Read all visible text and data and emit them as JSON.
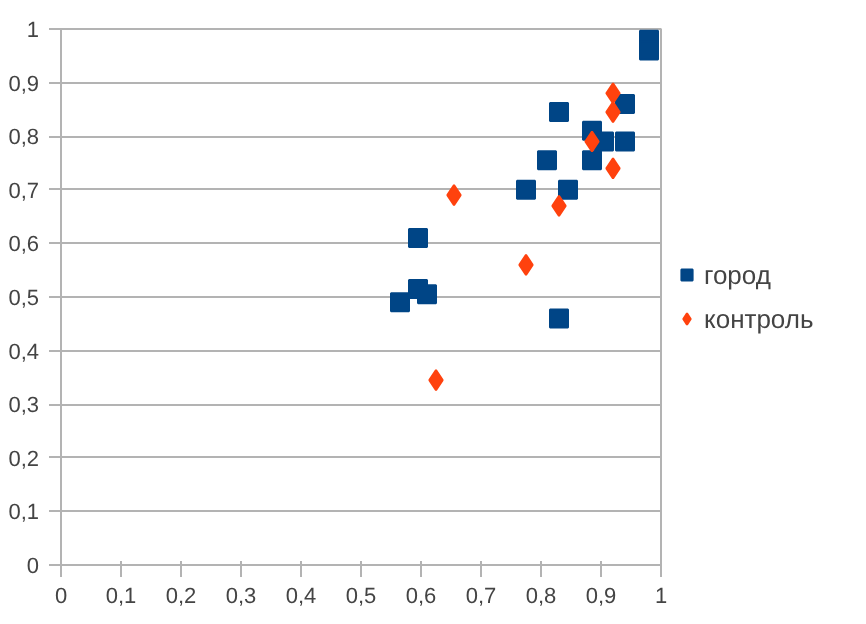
{
  "chart_data": {
    "type": "scatter",
    "xlim": [
      0,
      1
    ],
    "ylim": [
      0,
      1
    ],
    "xticks": [
      0,
      {
        "value": 0.1,
        "label": "0,1"
      },
      {
        "value": 0.2,
        "label": "0,2"
      },
      {
        "value": 0.3,
        "label": "0,3"
      },
      {
        "value": 0.4,
        "label": "0,4"
      },
      {
        "value": 0.5,
        "label": "0,5"
      },
      {
        "value": 0.6,
        "label": "0,6"
      },
      {
        "value": 0.7,
        "label": "0,7"
      },
      {
        "value": 0.8,
        "label": "0,8"
      },
      {
        "value": 0.9,
        "label": "0,9"
      },
      1
    ],
    "yticks": [
      0,
      {
        "value": 0.1,
        "label": "0,1"
      },
      {
        "value": 0.2,
        "label": "0,2"
      },
      {
        "value": 0.3,
        "label": "0,3"
      },
      {
        "value": 0.4,
        "label": "0,4"
      },
      {
        "value": 0.5,
        "label": "0,5"
      },
      {
        "value": 0.6,
        "label": "0,6"
      },
      {
        "value": 0.7,
        "label": "0,7"
      },
      {
        "value": 0.8,
        "label": "0,8"
      },
      {
        "value": 0.9,
        "label": "0,9"
      },
      1
    ],
    "grid": "y",
    "legend": "right",
    "series": [
      {
        "name": "город",
        "color": "#004586",
        "marker": "square",
        "x": [
          0.98,
          0.98,
          0.94,
          0.83,
          0.885,
          0.905,
          0.94,
          0.81,
          0.885,
          0.775,
          0.845,
          0.595,
          0.595,
          0.61,
          0.565,
          0.83
        ],
        "values": [
          0.98,
          0.96,
          0.86,
          0.845,
          0.81,
          0.79,
          0.79,
          0.755,
          0.755,
          0.7,
          0.7,
          0.61,
          0.515,
          0.505,
          0.49,
          0.46
        ]
      },
      {
        "name": "контроль",
        "color": "#ff420e",
        "marker": "diamond",
        "x": [
          0.92,
          0.92,
          0.885,
          0.92,
          0.83,
          0.655,
          0.775,
          0.625
        ],
        "values": [
          0.88,
          0.845,
          0.79,
          0.74,
          0.67,
          0.69,
          0.56,
          0.345
        ]
      }
    ]
  }
}
